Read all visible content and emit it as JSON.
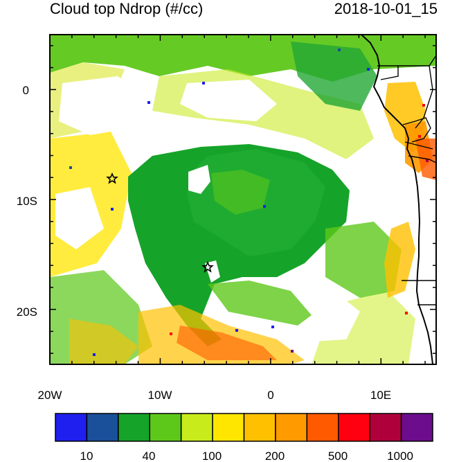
{
  "title": "Cloud top Ndrop (#/cc)",
  "timestamp": "2018-10-01_15",
  "map": {
    "lon_range": [
      -20,
      15
    ],
    "lat_range": [
      -25,
      5
    ],
    "x_ticks": [
      "20W",
      "10W",
      "0",
      "10E"
    ],
    "y_ticks": [
      "0",
      "10S",
      "20S"
    ],
    "markers": [
      {
        "name": "star-marker",
        "lon": -14.4,
        "lat": -8.0
      },
      {
        "name": "star-marker",
        "lon": -5.7,
        "lat": -16.0
      }
    ]
  },
  "colorbar": {
    "labels": [
      "10",
      "40",
      "100",
      "200",
      "500",
      "1000"
    ],
    "colors": [
      "#1f1ff0",
      "#1a4f9a",
      "#16a329",
      "#5ec81a",
      "#c8eb1c",
      "#ffe600",
      "#ffc000",
      "#ff9a00",
      "#ff5a00",
      "#ff0010",
      "#b0003c",
      "#6b0d8c"
    ]
  }
}
